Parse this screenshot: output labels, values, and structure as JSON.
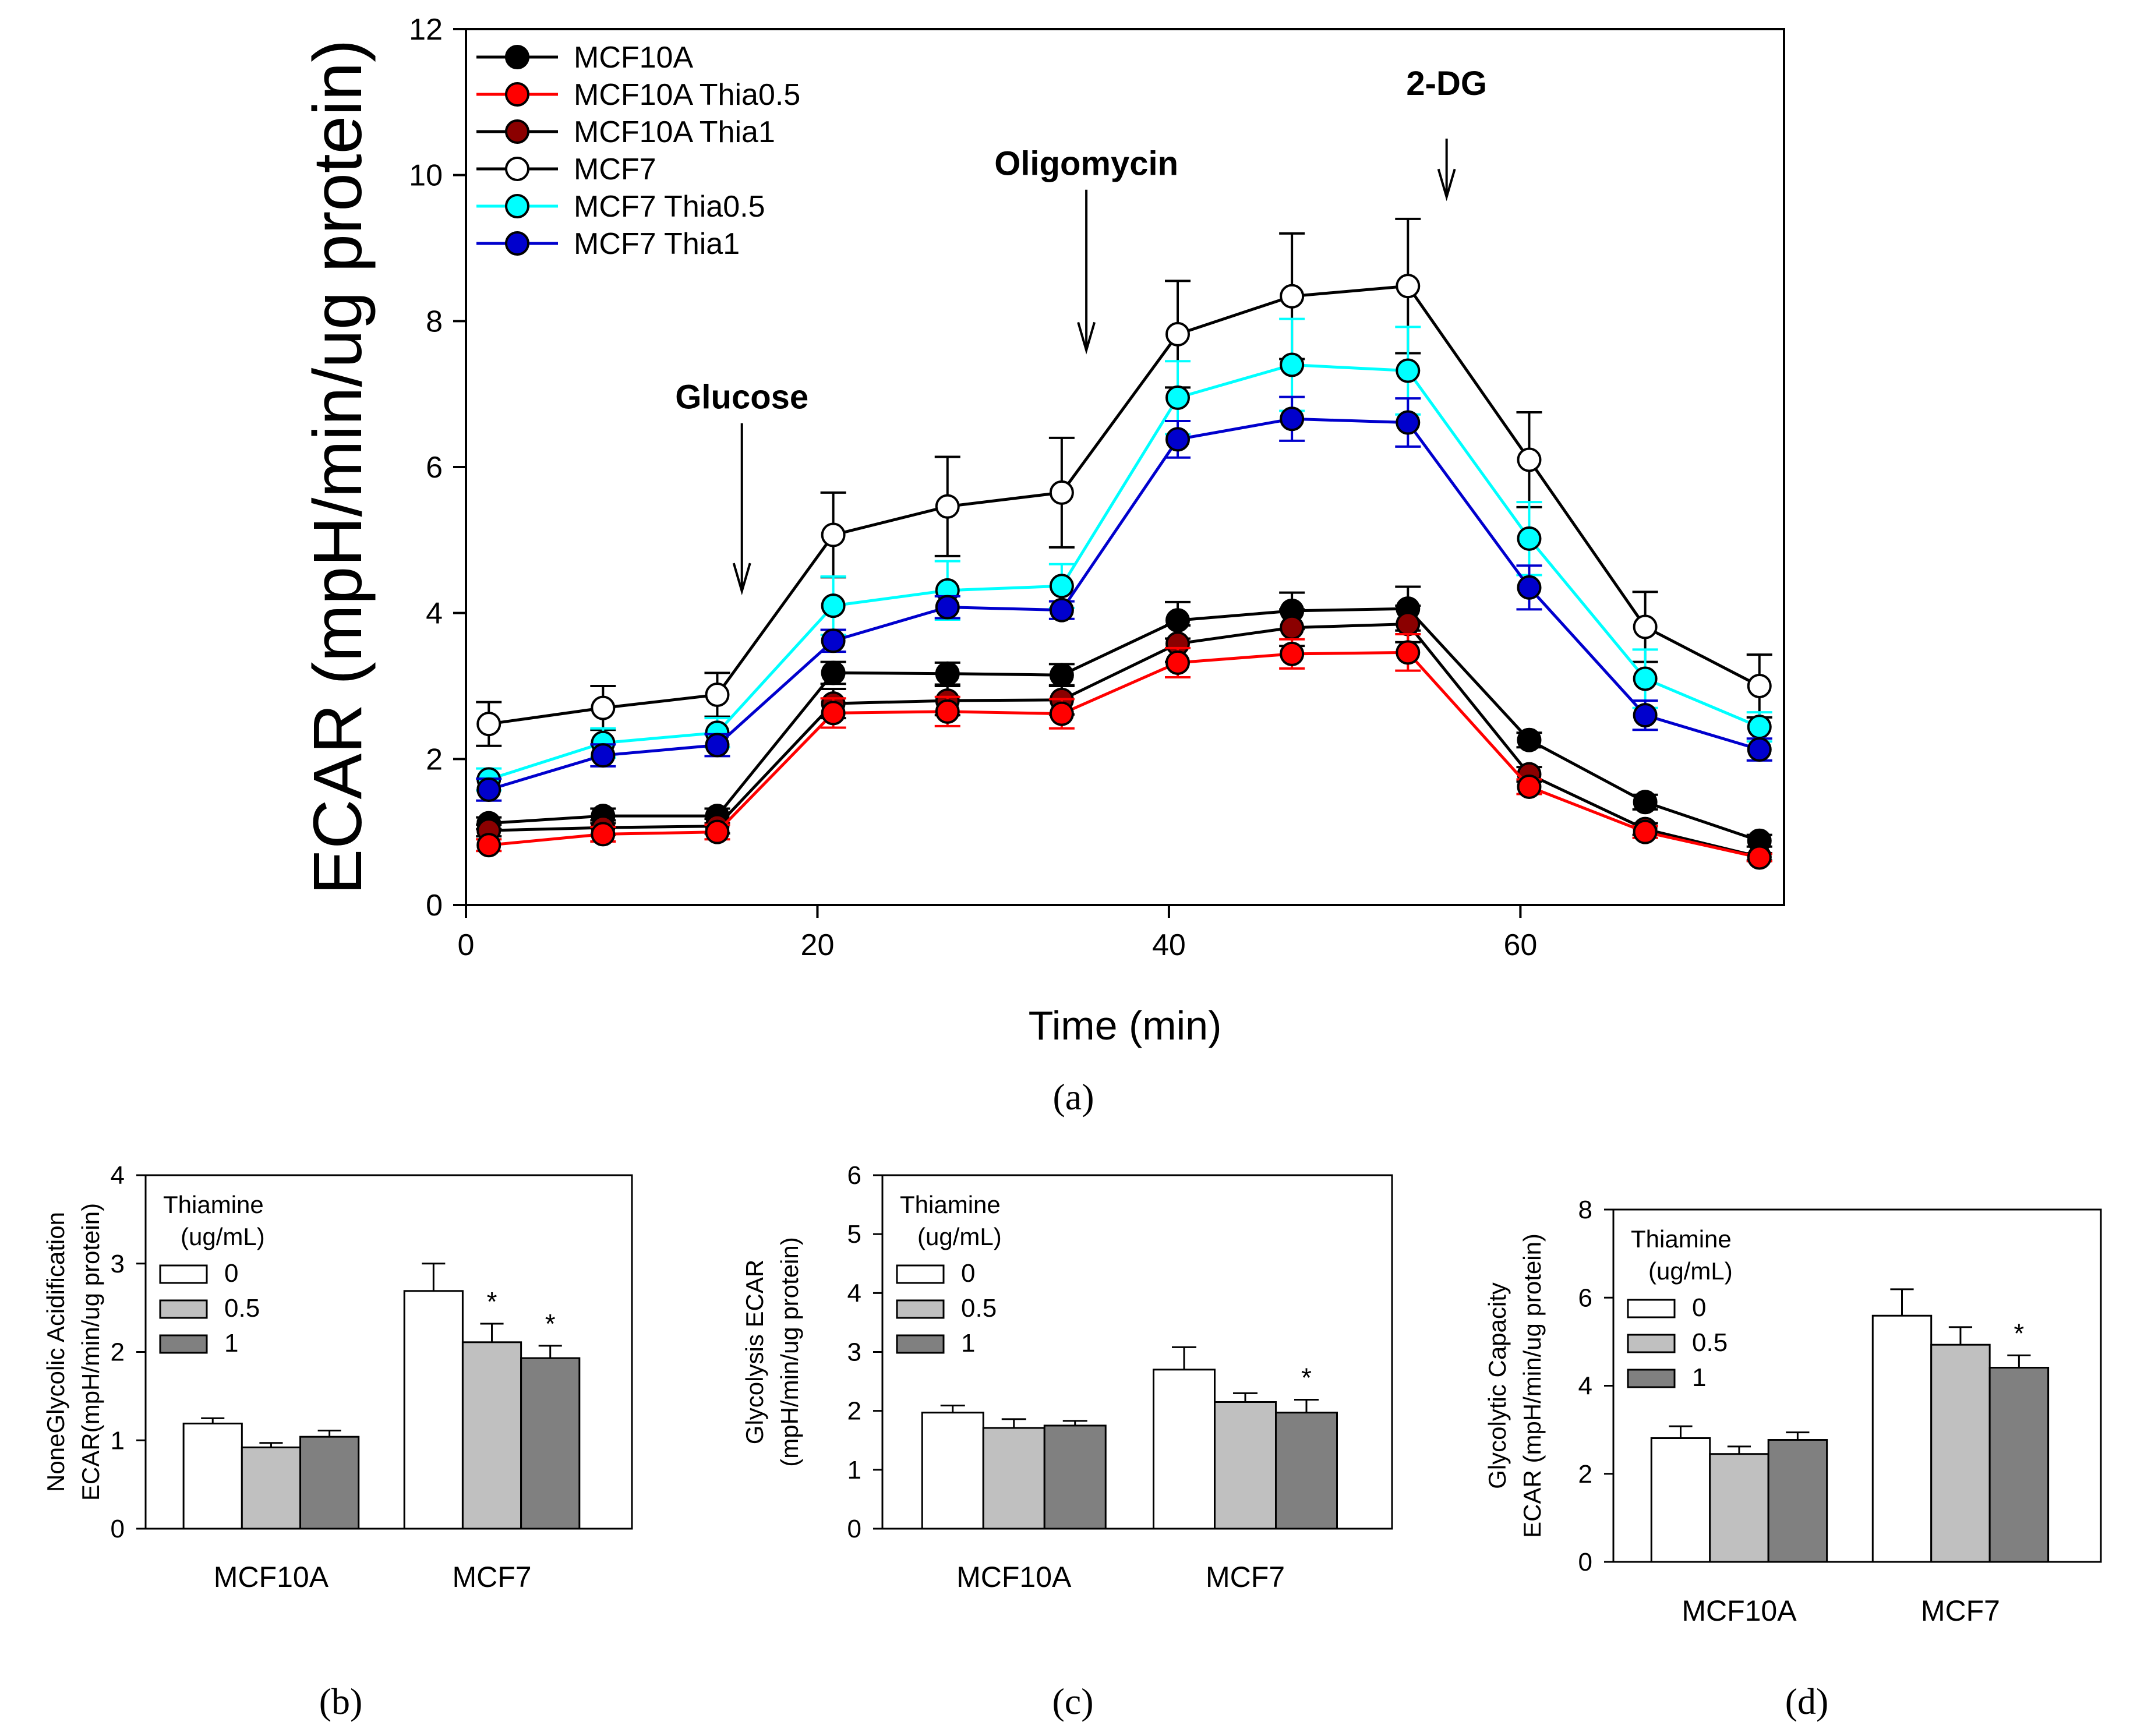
{
  "chart_data": [
    {
      "id": "a",
      "panel_label": "(a)",
      "type": "line",
      "title": "",
      "xlabel": "Time (min)",
      "ylabel": "ECAR (mpH/min/ug protein)",
      "xlim": [
        0,
        75
      ],
      "ylim": [
        0,
        12
      ],
      "xticks": [
        0,
        20,
        40,
        60
      ],
      "yticks": [
        0,
        2,
        4,
        6,
        8,
        10,
        12
      ],
      "x": [
        1.3,
        7.8,
        14.3,
        20.9,
        27.4,
        33.9,
        40.5,
        47.0,
        53.6,
        60.5,
        67.1,
        73.6
      ],
      "series": [
        {
          "name": "MCF10A",
          "color": "#000000",
          "marker_fill": "#000000",
          "values": [
            1.12,
            1.22,
            1.22,
            3.18,
            3.17,
            3.15,
            3.9,
            4.03,
            4.06,
            2.26,
            1.41,
            0.88
          ],
          "errors": [
            0.08,
            0.1,
            0.1,
            0.15,
            0.15,
            0.15,
            0.25,
            0.25,
            0.3,
            0.1,
            0.1,
            0.08
          ]
        },
        {
          "name": "MCF10A Thia0.5",
          "color": "#ff0000",
          "marker_fill": "#ff0000",
          "values": [
            0.82,
            0.97,
            1.0,
            2.63,
            2.65,
            2.62,
            3.32,
            3.44,
            3.46,
            1.62,
            1.0,
            0.65
          ],
          "errors": [
            0.08,
            0.1,
            0.1,
            0.2,
            0.2,
            0.2,
            0.2,
            0.2,
            0.25,
            0.1,
            0.08,
            0.05
          ]
        },
        {
          "name": "MCF10A Thia1",
          "color": "#8b0000",
          "marker_fill": "#8b0000",
          "line_color": "#000000",
          "values": [
            1.02,
            1.06,
            1.08,
            2.76,
            2.8,
            2.81,
            3.58,
            3.8,
            3.85,
            1.79,
            1.04,
            0.66
          ],
          "errors": [
            0.08,
            0.1,
            0.1,
            0.2,
            0.2,
            0.2,
            0.25,
            0.25,
            0.25,
            0.1,
            0.08,
            0.05
          ]
        },
        {
          "name": "MCF7",
          "color": "#000000",
          "marker_fill": "#ffffff",
          "values": [
            2.48,
            2.7,
            2.88,
            5.07,
            5.46,
            5.65,
            7.82,
            8.34,
            8.48,
            6.1,
            3.81,
            3.0
          ],
          "errors": [
            0.3,
            0.3,
            0.3,
            0.58,
            0.68,
            0.75,
            0.73,
            0.86,
            0.92,
            0.65,
            0.48,
            0.43
          ]
        },
        {
          "name": "MCF7 Thia0.5",
          "color": "#00ffff",
          "marker_fill": "#00ffff",
          "values": [
            1.72,
            2.22,
            2.36,
            4.1,
            4.31,
            4.37,
            6.95,
            7.4,
            7.32,
            5.02,
            3.1,
            2.44
          ],
          "errors": [
            0.15,
            0.2,
            0.2,
            0.4,
            0.4,
            0.3,
            0.5,
            0.63,
            0.6,
            0.5,
            0.4,
            0.2
          ]
        },
        {
          "name": "MCF7 Thia1",
          "color": "#0000cd",
          "marker_fill": "#0000cd",
          "values": [
            1.58,
            2.05,
            2.19,
            3.62,
            4.08,
            4.04,
            6.38,
            6.66,
            6.61,
            4.35,
            2.6,
            2.13
          ],
          "errors": [
            0.15,
            0.15,
            0.15,
            0.15,
            0.15,
            0.12,
            0.25,
            0.3,
            0.33,
            0.3,
            0.2,
            0.15
          ]
        }
      ],
      "annotations": [
        {
          "text": "Glucose",
          "x": 15.7,
          "arrow_top": 6.6,
          "arrow_bottom": 4.3,
          "label_y": 6.8
        },
        {
          "text": "Oligomycin",
          "x": 35.3,
          "arrow_top": 9.8,
          "arrow_bottom": 7.6,
          "label_y": 10.0
        },
        {
          "text": "2-DG",
          "x": 55.8,
          "arrow_top": 10.5,
          "arrow_bottom": 9.7,
          "label_y": 11.1
        }
      ],
      "legend_position": "top-left"
    },
    {
      "id": "b",
      "panel_label": "(b)",
      "type": "bar",
      "ylabel_lines": [
        "NoneGlycolic Acidification",
        "ECAR(mpH/min/ug protein)"
      ],
      "xlabel": "",
      "categories": [
        "MCF10A",
        "MCF7"
      ],
      "ylim": [
        0,
        4
      ],
      "yticks": [
        0,
        1,
        2,
        3,
        4
      ],
      "legend_title": [
        "Thiamine",
        "(ug/mL)"
      ],
      "series": [
        {
          "name": "0",
          "color": "#ffffff",
          "values": [
            1.19,
            2.69
          ],
          "errors": [
            0.06,
            0.31
          ],
          "sig": [
            "",
            ""
          ]
        },
        {
          "name": "0.5",
          "color": "#c0c0c0",
          "values": [
            0.92,
            2.11
          ],
          "errors": [
            0.05,
            0.21
          ],
          "sig": [
            "",
            "*"
          ]
        },
        {
          "name": "1",
          "color": "#808080",
          "values": [
            1.04,
            1.93
          ],
          "errors": [
            0.07,
            0.14
          ],
          "sig": [
            "",
            "*"
          ]
        }
      ]
    },
    {
      "id": "c",
      "panel_label": "(c)",
      "type": "bar",
      "ylabel_lines": [
        "Glycolysis ECAR",
        "(mpH/min/ug protein)"
      ],
      "xlabel": "",
      "categories": [
        "MCF10A",
        "MCF7"
      ],
      "ylim": [
        0,
        6
      ],
      "yticks": [
        0,
        1,
        2,
        3,
        4,
        5,
        6
      ],
      "legend_title": [
        "Thiamine",
        "(ug/mL)"
      ],
      "series": [
        {
          "name": "0",
          "color": "#ffffff",
          "values": [
            1.97,
            2.7
          ],
          "errors": [
            0.12,
            0.38
          ],
          "sig": [
            "",
            ""
          ]
        },
        {
          "name": "0.5",
          "color": "#c0c0c0",
          "values": [
            1.71,
            2.15
          ],
          "errors": [
            0.15,
            0.15
          ],
          "sig": [
            "",
            ""
          ]
        },
        {
          "name": "1",
          "color": "#808080",
          "values": [
            1.75,
            1.97
          ],
          "errors": [
            0.08,
            0.22
          ],
          "sig": [
            "",
            "*"
          ]
        }
      ]
    },
    {
      "id": "d",
      "panel_label": "(d)",
      "type": "bar",
      "ylabel_lines": [
        "Glycolytic Capacity",
        "ECAR (mpH/min/ug protein)"
      ],
      "xlabel": "",
      "categories": [
        "MCF10A",
        "MCF7"
      ],
      "ylim": [
        0,
        8
      ],
      "yticks": [
        0,
        2,
        4,
        6,
        8
      ],
      "legend_title": [
        "Thiamine",
        "(ug/mL)"
      ],
      "series": [
        {
          "name": "0",
          "color": "#ffffff",
          "values": [
            2.81,
            5.59
          ],
          "errors": [
            0.27,
            0.6
          ],
          "sig": [
            "",
            ""
          ]
        },
        {
          "name": "0.5",
          "color": "#c0c0c0",
          "values": [
            2.45,
            4.93
          ],
          "errors": [
            0.17,
            0.4
          ],
          "sig": [
            "",
            ""
          ]
        },
        {
          "name": "1",
          "color": "#808080",
          "values": [
            2.77,
            4.41
          ],
          "errors": [
            0.17,
            0.28
          ],
          "sig": [
            "",
            "*"
          ]
        }
      ]
    }
  ]
}
